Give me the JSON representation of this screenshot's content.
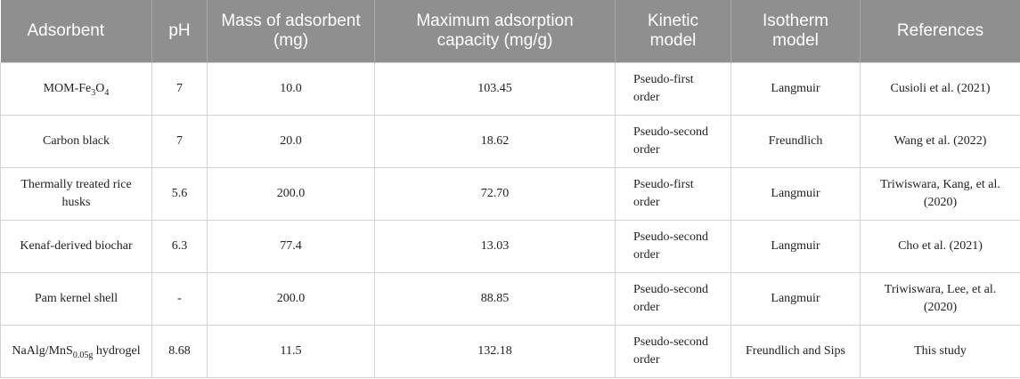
{
  "table": {
    "header": [
      "Adsorbent",
      "pH",
      "Mass of adsorbent (mg)",
      "Maximum adsorption capacity (mg/g)",
      "Kinetic model",
      "Isotherm model",
      "References"
    ],
    "rows": [
      [
        {
          "parts": [
            {
              "text": "MOM-Fe"
            },
            {
              "text": "3",
              "sub": true
            },
            {
              "text": "O"
            },
            {
              "text": "4",
              "sub": true
            }
          ]
        },
        "7",
        "10.0",
        "103.45",
        "Pseudo-first order",
        "Langmuir",
        "Cusioli et al. (2021)"
      ],
      [
        "Carbon black",
        "7",
        "20.0",
        "18.62",
        "Pseudo-second order",
        "Freundlich",
        "Wang et al. (2022)"
      ],
      [
        "Thermally treated rice husks",
        "5.6",
        "200.0",
        "72.70",
        "Pseudo-first order",
        "Langmuir",
        "Triwiswara, Kang, et al. (2020)"
      ],
      [
        "Kenaf-derived biochar",
        "6.3",
        "77.4",
        "13.03",
        "Pseudo-second order",
        "Langmuir",
        "Cho et al. (2021)"
      ],
      [
        "Pam kernel shell",
        "-",
        "200.0",
        "88.85",
        "Pseudo-second order",
        "Langmuir",
        "Triwiswara, Lee, et al. (2020)"
      ],
      [
        {
          "parts": [
            {
              "text": "NaAlg/MnS"
            },
            {
              "text": "0.05g",
              "sub": true
            },
            {
              "text": " hydrogel"
            }
          ]
        },
        "8.68",
        "11.5",
        "132.18",
        "Pseudo-second order",
        "Freundlich and Sips",
        "This study"
      ]
    ]
  }
}
